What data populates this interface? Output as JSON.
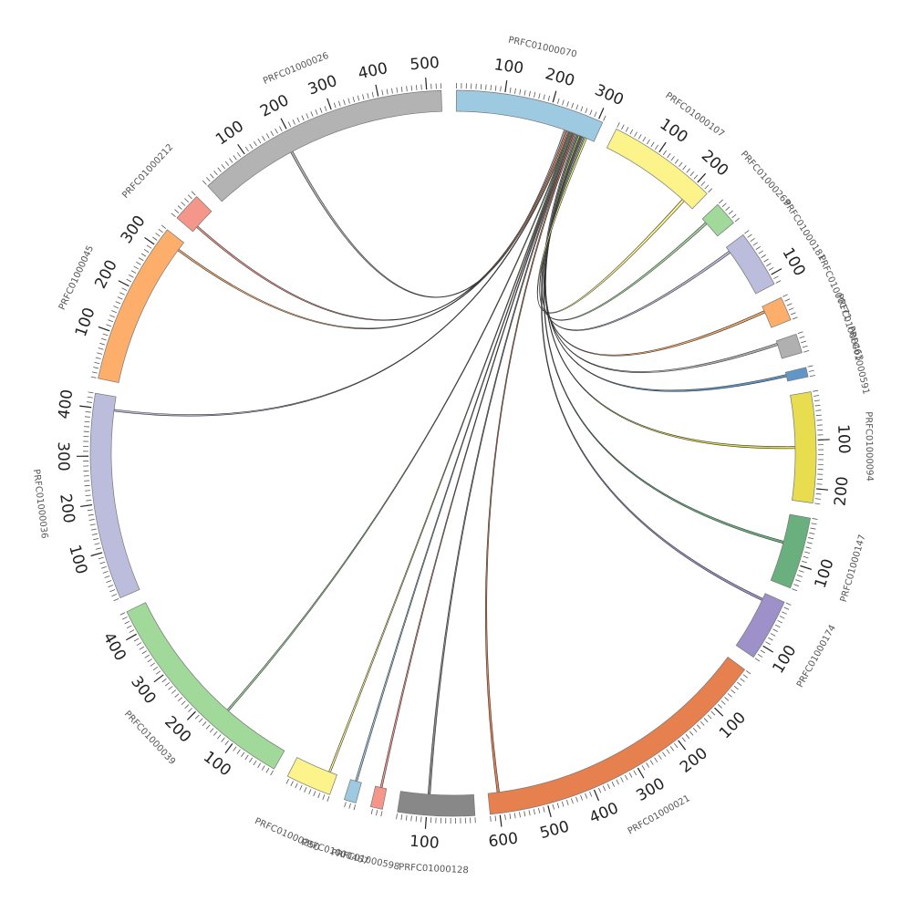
{
  "chart_data": {
    "type": "chord",
    "minor_tick_step": 10,
    "segments": [
      {
        "name": "PRFC01000070",
        "length": 310,
        "color": "#9ecae1",
        "ticks": [
          100,
          200,
          300
        ]
      },
      {
        "name": "PRFC01000107",
        "length": 230,
        "color": "#fdf38b",
        "ticks": [
          100,
          200
        ]
      },
      {
        "name": "PRFC01000269",
        "length": 50,
        "color": "#a1d99b",
        "ticks": []
      },
      {
        "name": "PRFC01000181",
        "length": 120,
        "color": "#bcbddc",
        "ticks": [
          100
        ]
      },
      {
        "name": "PRFC01000171",
        "length": 50,
        "color": "#fdae6b",
        "ticks": []
      },
      {
        "name": "PRFC01000463",
        "length": 40,
        "color": "#b0b0b0",
        "ticks": []
      },
      {
        "name": "PRFC01000591",
        "length": 20,
        "color": "#6196c9",
        "ticks": []
      },
      {
        "name": "PRFC01000094",
        "length": 230,
        "color": "#e7dd4f",
        "ticks": [
          100,
          200
        ]
      },
      {
        "name": "PRFC01000147",
        "length": 150,
        "color": "#6ab07e",
        "ticks": [
          100
        ]
      },
      {
        "name": "PRFC01000174",
        "length": 130,
        "color": "#9e90c9",
        "ticks": [
          100
        ]
      },
      {
        "name": "PRFC01000021",
        "length": 620,
        "color": "#e6804f",
        "ticks": [
          100,
          200,
          300,
          400,
          500,
          600
        ]
      },
      {
        "name": "PRFC01000128",
        "length": 160,
        "color": "#888888",
        "ticks": [
          100
        ]
      },
      {
        "name": "PRFC01000598",
        "length": 25,
        "color": "#f4978a",
        "ticks": []
      },
      {
        "name": "PRFC01000467",
        "length": 25,
        "color": "#9ecae1",
        "ticks": []
      },
      {
        "name": "PRFC01000250",
        "length": 95,
        "color": "#fdf38b",
        "ticks": []
      },
      {
        "name": "PRFC01000039",
        "length": 450,
        "color": "#a1d99b",
        "ticks": [
          100,
          200,
          300,
          400
        ]
      },
      {
        "name": "PRFC01000036",
        "length": 430,
        "color": "#bcbddc",
        "ticks": [
          100,
          200,
          300,
          400
        ]
      },
      {
        "name": "PRFC01000045",
        "length": 340,
        "color": "#fdae6b",
        "ticks": [
          100,
          200,
          300
        ]
      },
      {
        "name": "PRFC01000212",
        "length": 60,
        "color": "#f4978a",
        "ticks": []
      },
      {
        "name": "PRFC01000026",
        "length": 530,
        "color": "#b3b3b3",
        "ticks": [
          100,
          200,
          300,
          400,
          500
        ]
      }
    ],
    "links": [
      {
        "source": "PRFC01000070",
        "source_range": [
          240,
          244
        ],
        "target": "PRFC01000026",
        "target_range": [
          185,
          190
        ]
      },
      {
        "source": "PRFC01000070",
        "source_range": [
          244,
          247
        ],
        "target": "PRFC01000212",
        "target_range": [
          12,
          16
        ]
      },
      {
        "source": "PRFC01000070",
        "source_range": [
          247,
          250
        ],
        "target": "PRFC01000045",
        "target_range": [
          318,
          322
        ]
      },
      {
        "source": "PRFC01000070",
        "source_range": [
          250,
          252
        ],
        "target": "PRFC01000036",
        "target_range": [
          398,
          402
        ]
      },
      {
        "source": "PRFC01000070",
        "source_range": [
          252,
          254
        ],
        "target": "PRFC01000039",
        "target_range": [
          150,
          154
        ]
      },
      {
        "source": "PRFC01000070",
        "source_range": [
          254,
          256
        ],
        "target": "PRFC01000250",
        "target_range": [
          15,
          19
        ]
      },
      {
        "source": "PRFC01000070",
        "source_range": [
          256,
          258
        ],
        "target": "PRFC01000467",
        "target_range": [
          10,
          14
        ]
      },
      {
        "source": "PRFC01000070",
        "source_range": [
          258,
          260
        ],
        "target": "PRFC01000598",
        "target_range": [
          10,
          14
        ]
      },
      {
        "source": "PRFC01000070",
        "source_range": [
          260,
          263
        ],
        "target": "PRFC01000128",
        "target_range": [
          95,
          100
        ]
      },
      {
        "source": "PRFC01000070",
        "source_range": [
          263,
          266
        ],
        "target": "PRFC01000021",
        "target_range": [
          595,
          600
        ]
      },
      {
        "source": "PRFC01000070",
        "source_range": [
          268,
          271
        ],
        "target": "PRFC01000174",
        "target_range": [
          12,
          17
        ]
      },
      {
        "source": "PRFC01000070",
        "source_range": [
          271,
          274
        ],
        "target": "PRFC01000147",
        "target_range": [
          60,
          65
        ]
      },
      {
        "source": "PRFC01000070",
        "source_range": [
          274,
          277
        ],
        "target": "PRFC01000094",
        "target_range": [
          112,
          117
        ]
      },
      {
        "source": "PRFC01000070",
        "source_range": [
          277,
          279
        ],
        "target": "PRFC01000591",
        "target_range": [
          5,
          10
        ]
      },
      {
        "source": "PRFC01000070",
        "source_range": [
          279,
          281
        ],
        "target": "PRFC01000463",
        "target_range": [
          5,
          10
        ]
      },
      {
        "source": "PRFC01000070",
        "source_range": [
          281,
          283
        ],
        "target": "PRFC01000171",
        "target_range": [
          10,
          15
        ]
      },
      {
        "source": "PRFC01000070",
        "source_range": [
          283,
          286
        ],
        "target": "PRFC01000181",
        "target_range": [
          10,
          15
        ]
      },
      {
        "source": "PRFC01000070",
        "source_range": [
          286,
          289
        ],
        "target": "PRFC01000269",
        "target_range": [
          10,
          15
        ]
      },
      {
        "source": "PRFC01000070",
        "source_range": [
          289,
          293
        ],
        "target": "PRFC01000107",
        "target_range": [
          200,
          206
        ]
      }
    ]
  }
}
